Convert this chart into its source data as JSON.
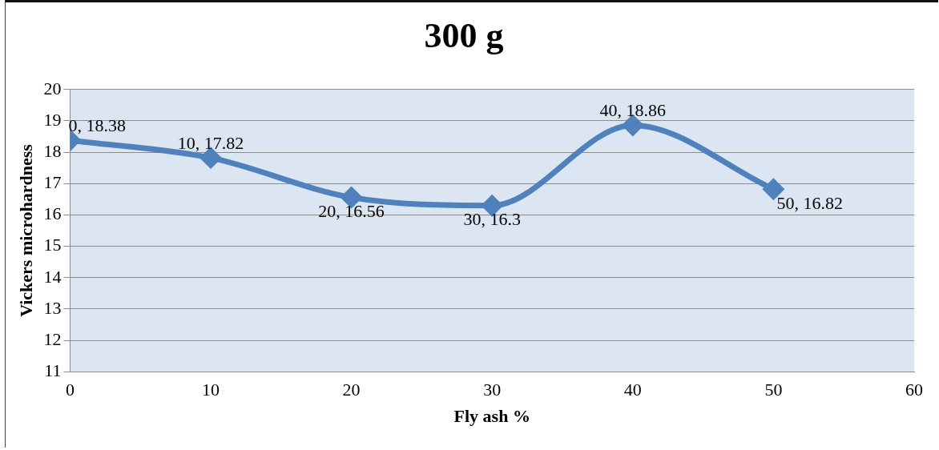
{
  "chart_data": {
    "type": "line",
    "title": "300 g",
    "xlabel": "Fly ash %",
    "ylabel": "Vickers microhardness",
    "x": [
      0,
      10,
      20,
      30,
      40,
      50
    ],
    "series": [
      {
        "color": "#4f81bd",
        "values": [
          18.38,
          17.82,
          16.56,
          16.3,
          18.86,
          16.82
        ],
        "value_labels": [
          "0, 18.38",
          "10, 17.82",
          "20, 16.56",
          "30, 16.3",
          "40, 18.86",
          "50, 16.82"
        ]
      }
    ],
    "xlim": [
      0,
      60
    ],
    "xticks": [
      0,
      10,
      20,
      30,
      40,
      50,
      60
    ],
    "ylim": [
      11,
      20
    ],
    "yticks": [
      11,
      12,
      13,
      14,
      15,
      16,
      17,
      18,
      19,
      20
    ],
    "grid": "y",
    "legend": false,
    "marker": "diamond",
    "line_style": "solid"
  }
}
